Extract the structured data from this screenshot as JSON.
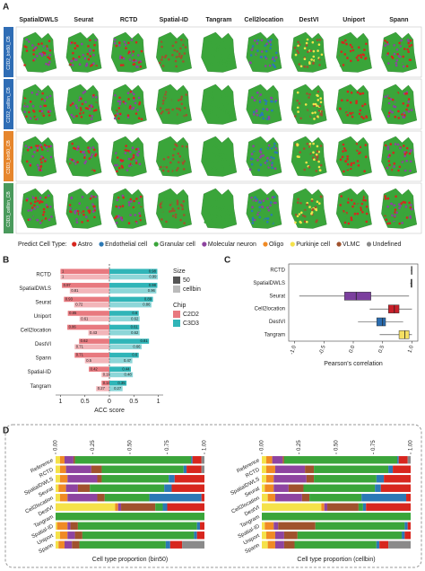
{
  "panel_labels": [
    "A",
    "B",
    "C",
    "D"
  ],
  "chart_data": [
    {
      "type": "spatial-grid",
      "columns": [
        "SpatialDWLS",
        "Seurat",
        "RCTD",
        "Spatial-ID",
        "Tangram",
        "Cell2location",
        "DestVI",
        "Uniport",
        "Spann"
      ],
      "rows": [
        "C2D2_bin50_CB",
        "C2D2_cellbin_CB",
        "C3D3_bin50_CB",
        "C3D3_cellbin_CB"
      ],
      "row_colors": [
        "#2f6db5",
        "#2f6db5",
        "#e6862d",
        "#4a9a5c"
      ],
      "legend_title": "Predict Cell Type:"
    },
    {
      "type": "bar",
      "categories": [
        "RCTD",
        "SpatialDWLS",
        "Seurat",
        "Uniport",
        "Cell2location",
        "DestVI",
        "Spann",
        "Spatial-ID",
        "Tangram"
      ],
      "series": [
        {
          "name": "C2D2",
          "color": "#e8797f",
          "values_50": [
            1,
            0.97,
            0.93,
            0.85,
            0.86,
            0.62,
            0.71,
            0.42,
            0.16
          ],
          "values_cellbin": [
            1,
            0.81,
            0.72,
            0.61,
            0.43,
            0.71,
            0.5,
            0.16,
            0.27
          ]
        },
        {
          "name": "C3D3",
          "color": "#30b5b8",
          "values_50": [
            0.98,
            0.98,
            0.89,
            0.6,
            0.61,
            0.81,
            0.6,
            0.44,
            0.35
          ],
          "values_cellbin": [
            0.99,
            0.96,
            0.86,
            0.62,
            0.62,
            0.66,
            0.47,
            0.48,
            0.27
          ]
        }
      ],
      "xlim": [
        -1.1,
        1.1
      ],
      "xticks": [
        {
          "value": -1,
          "label": "1"
        },
        {
          "value": -0.5,
          "label": "0.5"
        },
        0,
        0.5,
        1
      ],
      "xlabel": "ACC score",
      "size_legend": {
        "title": "Size",
        "items": [
          "50",
          "cellbin"
        ],
        "colors": [
          "#555555",
          "#bbbbbb"
        ]
      },
      "chip_legend_title": "Chip"
    },
    {
      "type": "box",
      "categories": [
        "RCTD",
        "SpatialDWLS",
        "Seurat",
        "Cell2location",
        "DestVI",
        "Tangram"
      ],
      "boxes": [
        {
          "color": "#444444",
          "min": 0.98,
          "q1": 0.99,
          "median": 0.995,
          "q3": 1,
          "max": 1
        },
        {
          "color": "#444444",
          "min": 0.97,
          "q1": 0.985,
          "median": 0.99,
          "q3": 1,
          "max": 1
        },
        {
          "color": "#7b3f9e",
          "min": -0.92,
          "q1": -0.15,
          "median": 0.05,
          "q3": 0.3,
          "max": 0.95
        },
        {
          "color": "#c8202a",
          "min": 0.28,
          "q1": 0.6,
          "median": 0.7,
          "q3": 0.78,
          "max": 1
        },
        {
          "color": "#2a6db0",
          "min": 0.08,
          "q1": 0.4,
          "median": 0.5,
          "q3": 0.55,
          "max": 0.85
        },
        {
          "color": "#f5e063",
          "min": 0.45,
          "q1": 0.78,
          "median": 0.88,
          "q3": 0.95,
          "max": 1
        }
      ],
      "xlim": [
        -1.1,
        1.1
      ],
      "xticks": [
        {
          "value": -1,
          "label": "-1.0"
        },
        -0.5,
        {
          "value": 0,
          "label": "0.0"
        },
        0.5,
        {
          "value": 1,
          "label": "1.0"
        }
      ],
      "xlabel": "Pearson's correlation"
    },
    {
      "type": "stacked-bar",
      "categories": [
        "Reference",
        "RCTD",
        "SpatialDWLS",
        "Seurat",
        "Cell2location",
        "DestVI",
        "Tangram",
        "Spatial-ID",
        "Uniport",
        "Spann"
      ],
      "xlim": [
        0,
        1
      ],
      "xticks": [
        {
          "value": 0,
          "label": "0.00"
        },
        0.25,
        {
          "value": 0.5,
          "label": "0.50"
        },
        0.75,
        {
          "value": 1,
          "label": "1.00"
        }
      ],
      "xlabels": [
        "Cell type proportion (bin50)",
        "Cell type proportion (cellbin)"
      ],
      "series": [
        {
          "name": "Astro",
          "color": "#d7261e",
          "values_bin50": [
            0.06,
            0.1,
            0.2,
            0.22,
            0.02,
            0.25,
            0,
            0.03,
            0.05,
            0.08
          ],
          "values_cellbin": [
            0.06,
            0.12,
            0.18,
            0.2,
            0.03,
            0.3,
            0,
            0.02,
            0.04,
            0.06
          ]
        },
        {
          "name": "Endothelial cell",
          "color": "#2b78b5",
          "values_bin50": [
            0.01,
            0.02,
            0.04,
            0.05,
            0.35,
            0.03,
            0,
            0.02,
            0.02,
            0.03
          ],
          "values_cellbin": [
            0.01,
            0.03,
            0.05,
            0.04,
            0.3,
            0.02,
            0,
            0.02,
            0.02,
            0.02
          ]
        },
        {
          "name": "Granular cell",
          "color": "#3aa53a",
          "values_bin50": [
            0.78,
            0.55,
            0.45,
            0.5,
            0.3,
            0.05,
            1,
            0.8,
            0.75,
            0.58
          ],
          "values_cellbin": [
            0.76,
            0.5,
            0.42,
            0.48,
            0.35,
            0.03,
            1,
            0.6,
            0.7,
            0.55
          ]
        },
        {
          "name": "Molecular neuron",
          "color": "#8e44a0",
          "values_bin50": [
            0.06,
            0.17,
            0.2,
            0.08,
            0.2,
            0.02,
            0,
            0.02,
            0.05,
            0.05
          ],
          "values_cellbin": [
            0.07,
            0.2,
            0.22,
            0.1,
            0.18,
            0.02,
            0,
            0.03,
            0.06,
            0.06
          ]
        },
        {
          "name": "Oligo",
          "color": "#f08a24",
          "values_bin50": [
            0.03,
            0.04,
            0.05,
            0.05,
            0.05,
            0.02,
            0,
            0.07,
            0.05,
            0.04
          ],
          "values_cellbin": [
            0.04,
            0.06,
            0.05,
            0.06,
            0.05,
            0.02,
            0,
            0.06,
            0.06,
            0.05
          ]
        },
        {
          "name": "Purkinje cell",
          "color": "#f5e24a",
          "values_bin50": [
            0.03,
            0.03,
            0.03,
            0.02,
            0.03,
            0.4,
            0,
            0.01,
            0.03,
            0.02
          ],
          "values_cellbin": [
            0.03,
            0.03,
            0.03,
            0.02,
            0.04,
            0.4,
            0,
            0.02,
            0.03,
            0.04
          ]
        },
        {
          "name": "VLMC",
          "color": "#a0522d",
          "values_bin50": [
            0.01,
            0.07,
            0.03,
            0.08,
            0.05,
            0.23,
            0,
            0.05,
            0.05,
            0.05
          ],
          "values_cellbin": [
            0.01,
            0.06,
            0.05,
            0.1,
            0.05,
            0.21,
            0,
            0.25,
            0.09,
            0.07
          ]
        },
        {
          "name": "Undefined",
          "color": "#8a8a8a",
          "values_bin50": [
            0.02,
            0.02,
            0,
            0,
            0,
            0,
            0,
            0,
            0,
            0.15
          ],
          "values_cellbin": [
            0.02,
            0,
            0,
            0,
            0,
            0,
            0,
            0,
            0,
            0.15
          ]
        }
      ]
    }
  ]
}
